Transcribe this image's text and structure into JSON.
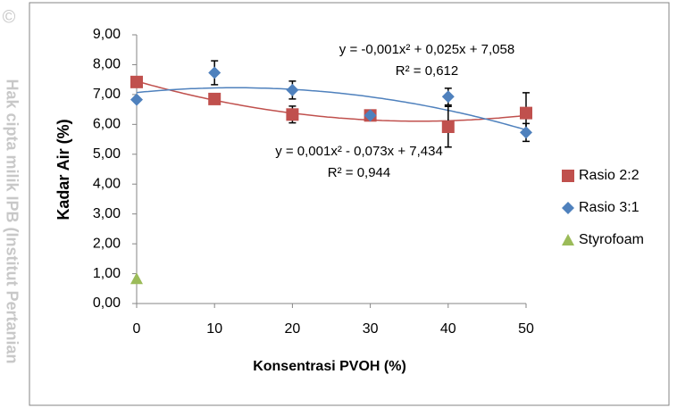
{
  "chart_data": {
    "type": "scatter",
    "watermark": "Hak cipta milik IPB (Institut Pertanian",
    "copyright_mark": "©",
    "x_label": "Konsentrasi PVOH (%)",
    "y_label": "Kadar Air (%)",
    "xlim": [
      0,
      50
    ],
    "xticks": [
      0,
      10,
      20,
      30,
      40,
      50
    ],
    "ylim": [
      0,
      9
    ],
    "yticks": [
      {
        "value": 0,
        "label": "0,00"
      },
      {
        "value": 1,
        "label": "1,00"
      },
      {
        "value": 2,
        "label": "2,00"
      },
      {
        "value": 3,
        "label": "3,00"
      },
      {
        "value": 4,
        "label": "4,00"
      },
      {
        "value": 5,
        "label": "5,00"
      },
      {
        "value": 6,
        "label": "6,00"
      },
      {
        "value": 7,
        "label": "7,00"
      },
      {
        "value": 8,
        "label": "8,00"
      },
      {
        "value": 9,
        "label": "9,00"
      }
    ],
    "grid": false,
    "legend": "right",
    "series": [
      {
        "name": "Rasio 2:2",
        "color": "#C0504D",
        "marker": "square",
        "trendline": "poly2",
        "x": [
          0,
          10,
          20,
          30,
          40,
          50
        ],
        "values": [
          7.42,
          6.85,
          6.33,
          6.3,
          5.92,
          6.38
        ],
        "errors": [
          0.05,
          0.15,
          0.28,
          0.05,
          0.68,
          0.68
        ]
      },
      {
        "name": "Rasio 3:1",
        "color": "#4F81BD",
        "marker": "diamond",
        "trendline": "poly2",
        "x": [
          0,
          10,
          20,
          30,
          40,
          50
        ],
        "values": [
          6.83,
          7.73,
          7.15,
          6.3,
          6.93,
          5.73
        ],
        "errors": [
          0.05,
          0.4,
          0.3,
          0.05,
          0.28,
          0.3
        ]
      },
      {
        "name": "Styrofoam",
        "color": "#9BBB59",
        "marker": "triangle",
        "x": [
          0
        ],
        "values": [
          0.83
        ],
        "errors": [
          0
        ]
      }
    ],
    "annotations": [
      "y = -0,001x² + 0,025x + 7,058",
      "R² = 0,612",
      "y = 0,001x² - 0,073x + 7,434",
      "R² = 0,944"
    ]
  }
}
